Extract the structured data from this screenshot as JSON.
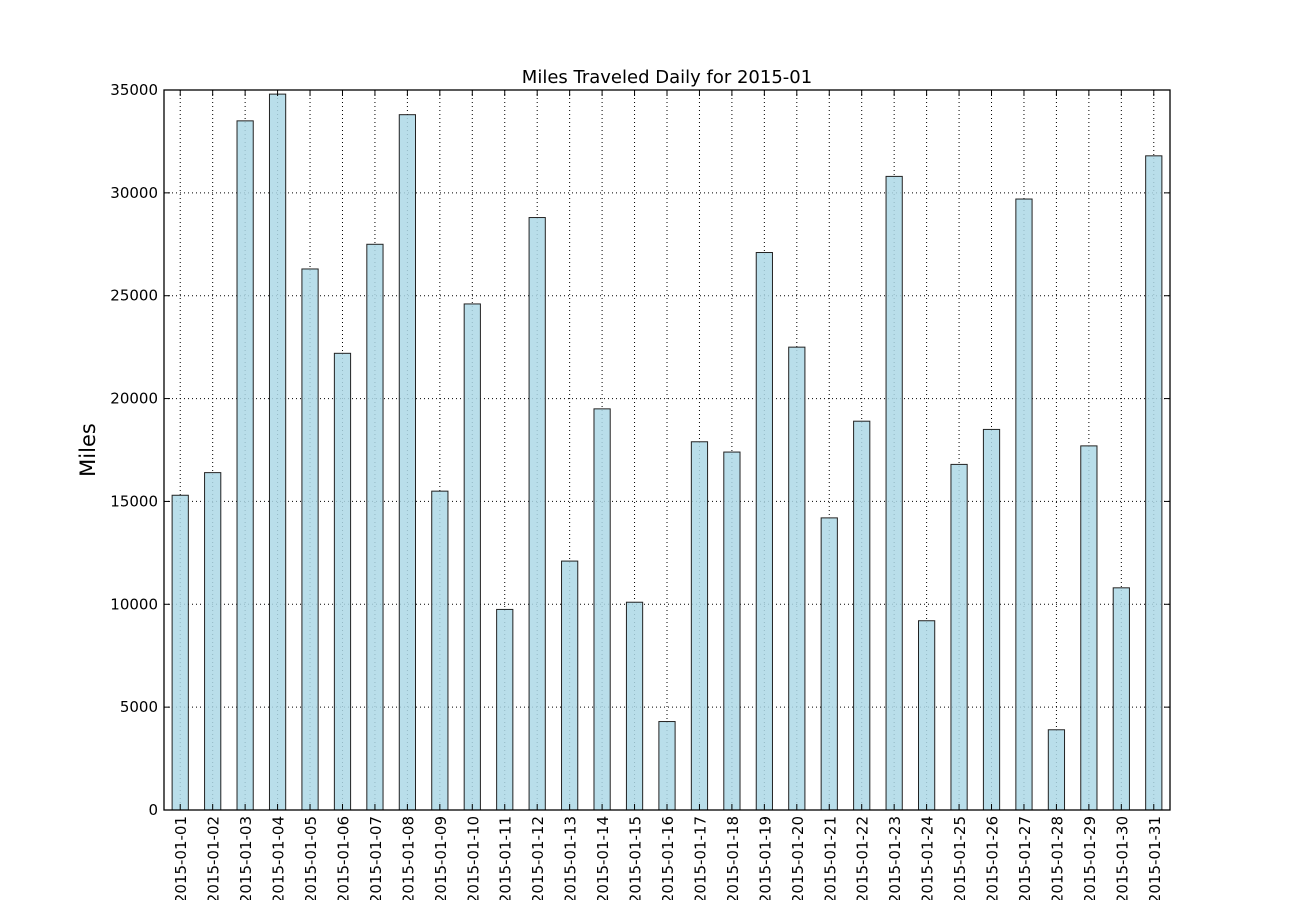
{
  "chart_data": {
    "type": "bar",
    "title": "Miles Traveled Daily for 2015-01",
    "xlabel": "",
    "ylabel": "Miles",
    "ylim": [
      0,
      35000
    ],
    "yticks": [
      0,
      5000,
      10000,
      15000,
      20000,
      25000,
      30000,
      35000
    ],
    "grid": true,
    "bar_color": "#add8e6",
    "categories": [
      "2015-01-01",
      "2015-01-02",
      "2015-01-03",
      "2015-01-04",
      "2015-01-05",
      "2015-01-06",
      "2015-01-07",
      "2015-01-08",
      "2015-01-09",
      "2015-01-10",
      "2015-01-11",
      "2015-01-12",
      "2015-01-13",
      "2015-01-14",
      "2015-01-15",
      "2015-01-16",
      "2015-01-17",
      "2015-01-18",
      "2015-01-19",
      "2015-01-20",
      "2015-01-21",
      "2015-01-22",
      "2015-01-23",
      "2015-01-24",
      "2015-01-25",
      "2015-01-26",
      "2015-01-27",
      "2015-01-28",
      "2015-01-29",
      "2015-01-30",
      "2015-01-31"
    ],
    "values": [
      15300,
      16400,
      33500,
      34800,
      26300,
      22200,
      27500,
      33800,
      15500,
      24600,
      9750,
      28800,
      12100,
      19500,
      10100,
      4300,
      17900,
      17400,
      27100,
      22500,
      14200,
      18900,
      30800,
      9200,
      16800,
      18500,
      29700,
      3900,
      17700,
      10800,
      31800
    ]
  }
}
